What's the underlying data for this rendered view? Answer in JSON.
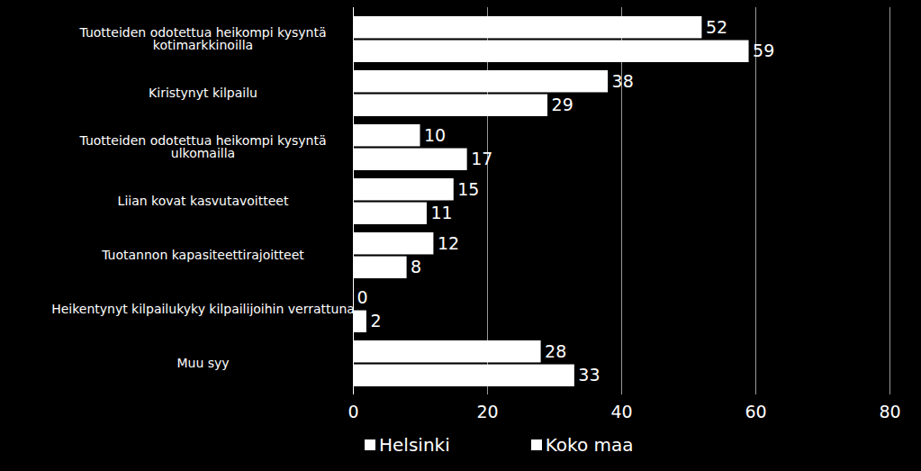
{
  "chart_data": {
    "type": "bar",
    "orientation": "horizontal",
    "categories": [
      "Tuotteiden odotettua heikompi kysyntä kotimarkkinoilla",
      "Kiristynyt kilpailu",
      "Tuotteiden odotettua heikompi kysyntä ulkomailla",
      "Liian kovat kasvutavoitteet",
      "Tuotannon kapasiteettirajoitteet",
      "Heikentynyt kilpailukyky kilpailijoihin verrattuna",
      "Muu syy"
    ],
    "series": [
      {
        "name": "Helsinki",
        "color": "#ffffff",
        "values": [
          52,
          38,
          10,
          15,
          12,
          0,
          28
        ]
      },
      {
        "name": "Koko maa",
        "color": "#ffffff",
        "values": [
          59,
          29,
          17,
          11,
          8,
          2,
          33
        ]
      }
    ],
    "xlim": [
      0,
      80
    ],
    "xticks": [
      0,
      20,
      40,
      60,
      80
    ],
    "grid": true,
    "data_labels": true,
    "legend": "bottom"
  }
}
